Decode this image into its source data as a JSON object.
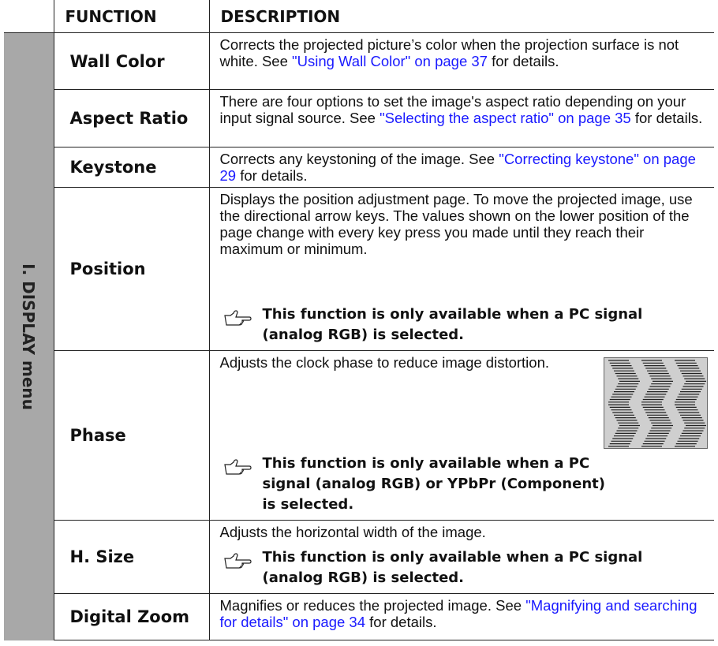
{
  "header": {
    "function": "FUNCTION",
    "description": "DESCRIPTION"
  },
  "menu_label": "I. DISPLAY menu",
  "rows": [
    {
      "function": "Wall Color",
      "description": [
        {
          "text": "Corrects the projected picture’s color when the projection surface is not white. See "
        },
        {
          "link": "\"Using Wall Color\" on page 37"
        },
        {
          "text": " for details."
        }
      ]
    },
    {
      "function": "Aspect Ratio",
      "description": [
        {
          "text": "There are four options to set the image's aspect ratio depending on your input signal source. See "
        },
        {
          "link": "\"Selecting the aspect ratio\" on page 35"
        },
        {
          "text": " for details."
        }
      ]
    },
    {
      "function": "Keystone",
      "description": [
        {
          "text": "Corrects any keystoning of the image. See "
        },
        {
          "link": "\"Correcting keystone\" on page 29"
        },
        {
          "text": " for details."
        }
      ]
    },
    {
      "function": "Position",
      "description": [
        {
          "text": "Displays the position adjustment page. To move the projected image, use the directional arrow keys. The values shown on the lower position of the page change with every key press you made until they reach their maximum or minimum."
        }
      ],
      "note": "This function is only available when a PC signal (analog RGB) is selected."
    },
    {
      "function": "Phase",
      "description": [
        {
          "text": "Adjusts the clock phase to reduce image distortion."
        }
      ],
      "note": "This function is only available when a PC signal (analog RGB) or YPbPr (Component) is selected."
    },
    {
      "function": "H. Size",
      "description": [
        {
          "text": "Adjusts the horizontal width of the image."
        }
      ],
      "note": "This function is only available when a PC signal (analog RGB) is selected."
    },
    {
      "function": "Digital Zoom",
      "description": [
        {
          "text": "Magnifies or reduces the projected image. See "
        },
        {
          "link": "\"Magnifying and searching for details\" on page 34"
        },
        {
          "text": " for details."
        }
      ]
    }
  ]
}
